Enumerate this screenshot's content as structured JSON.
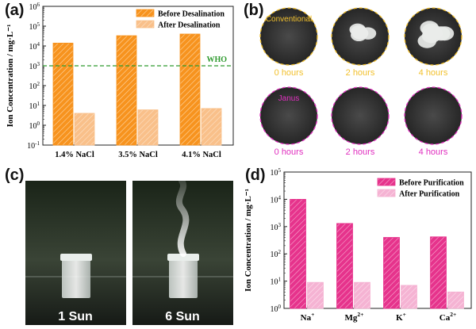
{
  "panels": {
    "a": {
      "letter": "(a)"
    },
    "b": {
      "letter": "(b)",
      "rows": [
        {
          "label": "Conventional",
          "color": "#f2c12e",
          "times": [
            "0 hours",
            "2 hours",
            "4 hours"
          ],
          "salt": [
            0,
            0.55,
            0.8
          ]
        },
        {
          "label": "Janus",
          "color": "#e02fbf",
          "times": [
            "0 hours",
            "2 hours",
            "4 hours"
          ],
          "salt": [
            0,
            0,
            0
          ]
        }
      ]
    },
    "c": {
      "letter": "(c)",
      "captions": [
        "1 Sun",
        "6 Sun"
      ]
    },
    "d": {
      "letter": "(d)"
    }
  },
  "chart_data": [
    {
      "type": "bar",
      "panel": "a",
      "scale": "log",
      "categories": [
        "1.4% NaCl",
        "3.5% NaCl",
        "4.1% NaCl"
      ],
      "series": [
        {
          "name": "Before Desalination",
          "values": [
            14000,
            33000,
            40000
          ],
          "color": "#f7931e",
          "hatch": true
        },
        {
          "name": "After Desalination",
          "values": [
            4,
            6,
            7
          ],
          "color": "#f9c08a",
          "hatch": true
        }
      ],
      "ylabel": "Ion Concentration / mg·L⁻¹",
      "ylim": [
        0.1,
        1000000
      ],
      "yticks": [
        {
          "base": "10",
          "exp": "-1"
        },
        {
          "base": "10",
          "exp": "0"
        },
        {
          "base": "10",
          "exp": "1"
        },
        {
          "base": "10",
          "exp": "2"
        },
        {
          "base": "10",
          "exp": "3"
        },
        {
          "base": "10",
          "exp": "4"
        },
        {
          "base": "10",
          "exp": "5"
        },
        {
          "base": "10",
          "exp": "6"
        }
      ],
      "annotation": {
        "text": "WHO",
        "value": 1000,
        "color": "#2e9a2e"
      },
      "legend": "top-right"
    },
    {
      "type": "bar",
      "panel": "d",
      "scale": "log",
      "categories": [
        {
          "base": "Na",
          "sup": "+"
        },
        {
          "base": "Mg",
          "sup": "2+"
        },
        {
          "base": "K",
          "sup": "+"
        },
        {
          "base": "Ca",
          "sup": "2+"
        }
      ],
      "series": [
        {
          "name": "Before Purification",
          "values": [
            10000,
            1300,
            400,
            420
          ],
          "color": "#e6338c",
          "hatch": true
        },
        {
          "name": "After Purification",
          "values": [
            9,
            9,
            7,
            4
          ],
          "color": "#f5b3d3",
          "hatch": true
        }
      ],
      "ylabel": "Ion Concentration / mg·L⁻¹",
      "ylim": [
        1,
        100000
      ],
      "yticks": [
        {
          "base": "10",
          "exp": "0"
        },
        {
          "base": "10",
          "exp": "1"
        },
        {
          "base": "10",
          "exp": "2"
        },
        {
          "base": "10",
          "exp": "3"
        },
        {
          "base": "10",
          "exp": "4"
        },
        {
          "base": "10",
          "exp": "5"
        }
      ],
      "legend": "top-right"
    }
  ]
}
